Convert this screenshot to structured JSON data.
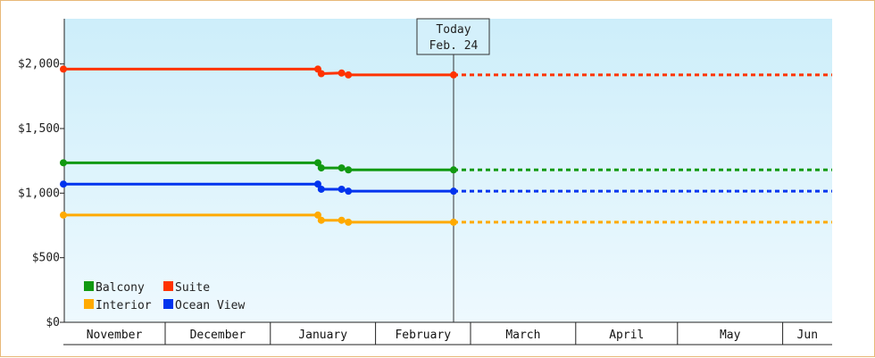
{
  "chart_data": {
    "type": "line",
    "title": "",
    "xlabel": "",
    "ylabel": "",
    "ylim": [
      0,
      2350
    ],
    "yticks": [
      {
        "value": 0,
        "label": "$0"
      },
      {
        "value": 500,
        "label": "$500"
      },
      {
        "value": 1000,
        "label": "$1,000"
      },
      {
        "value": 1500,
        "label": "$1,500"
      },
      {
        "value": 2000,
        "label": "$2,000"
      }
    ],
    "x_axis_months": [
      "November",
      "December",
      "January",
      "February",
      "March",
      "April",
      "May",
      "Jun"
    ],
    "today": {
      "label": "Today",
      "date_label": "Feb. 24"
    },
    "legend": {
      "placement": "bottom-left",
      "items": [
        {
          "name": "Balcony",
          "color": "#119911"
        },
        {
          "name": "Suite",
          "color": "#ff3300"
        },
        {
          "name": "Interior",
          "color": "#ffaa00"
        },
        {
          "name": "Ocean View",
          "color": "#0033ee"
        }
      ]
    },
    "series": [
      {
        "name": "Suite",
        "color": "#ff3300",
        "points": [
          [
            "Nov 1",
            1960
          ],
          [
            "Jan 15",
            1960
          ],
          [
            "Jan 16",
            1925
          ],
          [
            "Jan 22",
            1930
          ],
          [
            "Jan 24",
            1915
          ],
          [
            "Feb 24",
            1915
          ]
        ],
        "projected_to": "Jun"
      },
      {
        "name": "Balcony",
        "color": "#119911",
        "points": [
          [
            "Nov 1",
            1235
          ],
          [
            "Jan 15",
            1235
          ],
          [
            "Jan 16",
            1195
          ],
          [
            "Jan 22",
            1195
          ],
          [
            "Jan 24",
            1180
          ],
          [
            "Feb 24",
            1180
          ]
        ],
        "projected_to": "Jun"
      },
      {
        "name": "Ocean View",
        "color": "#0033ee",
        "points": [
          [
            "Nov 1",
            1070
          ],
          [
            "Jan 15",
            1070
          ],
          [
            "Jan 16",
            1030
          ],
          [
            "Jan 22",
            1030
          ],
          [
            "Jan 24",
            1015
          ],
          [
            "Feb 24",
            1015
          ]
        ],
        "projected_to": "Jun"
      },
      {
        "name": "Interior",
        "color": "#ffaa00",
        "points": [
          [
            "Nov 1",
            830
          ],
          [
            "Jan 15",
            830
          ],
          [
            "Jan 16",
            790
          ],
          [
            "Jan 22",
            790
          ],
          [
            "Jan 24",
            775
          ],
          [
            "Feb 24",
            775
          ]
        ],
        "projected_to": "Jun"
      }
    ]
  }
}
